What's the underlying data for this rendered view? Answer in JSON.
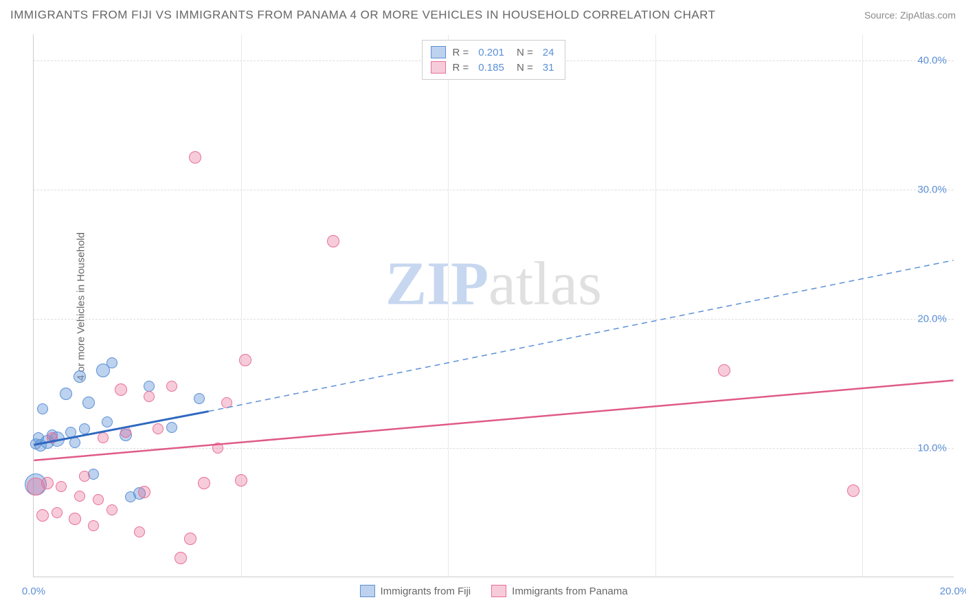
{
  "title": "IMMIGRANTS FROM FIJI VS IMMIGRANTS FROM PANAMA 4 OR MORE VEHICLES IN HOUSEHOLD CORRELATION CHART",
  "source": "Source: ZipAtlas.com",
  "y_axis_label": "4 or more Vehicles in Household",
  "watermark_zip": "ZIP",
  "watermark_atlas": "atlas",
  "chart": {
    "type": "scatter",
    "xlim": [
      0,
      20
    ],
    "ylim": [
      0,
      42
    ],
    "xticks": [
      {
        "val": 0,
        "label": "0.0%"
      },
      {
        "val": 20,
        "label": "20.0%"
      }
    ],
    "yticks": [
      {
        "val": 10,
        "label": "10.0%"
      },
      {
        "val": 20,
        "label": "20.0%"
      },
      {
        "val": 30,
        "label": "30.0%"
      },
      {
        "val": 40,
        "label": "40.0%"
      }
    ],
    "vgrid": [
      4.5,
      9.0,
      13.5,
      18.0
    ],
    "background_color": "#ffffff",
    "grid_color": "#dddddd",
    "series": [
      {
        "name": "Immigrants from Fiji",
        "fill": "rgba(107,156,218,0.45)",
        "stroke": "#5b8fd6",
        "r_value": "0.201",
        "n_value": "24",
        "trend": {
          "x1": 0,
          "y1": 10.2,
          "x2": 3.8,
          "y2": 12.8,
          "x2_dash": 20,
          "y2_dash": 24.5,
          "solid_color": "#2f68c0",
          "solid_width": 3,
          "dash_color": "#5b8fd6",
          "dash_width": 1.5
        },
        "points": [
          {
            "x": 0.05,
            "y": 10.3,
            "r": 8
          },
          {
            "x": 0.1,
            "y": 10.8,
            "r": 8
          },
          {
            "x": 0.15,
            "y": 10.2,
            "r": 9
          },
          {
            "x": 0.2,
            "y": 13.0,
            "r": 8
          },
          {
            "x": 0.3,
            "y": 10.5,
            "r": 10
          },
          {
            "x": 0.4,
            "y": 11.0,
            "r": 8
          },
          {
            "x": 0.5,
            "y": 10.7,
            "r": 11
          },
          {
            "x": 0.7,
            "y": 14.2,
            "r": 9
          },
          {
            "x": 0.8,
            "y": 11.2,
            "r": 8
          },
          {
            "x": 0.9,
            "y": 10.4,
            "r": 8
          },
          {
            "x": 1.0,
            "y": 15.5,
            "r": 9
          },
          {
            "x": 1.1,
            "y": 11.5,
            "r": 8
          },
          {
            "x": 1.2,
            "y": 13.5,
            "r": 9
          },
          {
            "x": 1.3,
            "y": 8.0,
            "r": 8
          },
          {
            "x": 1.5,
            "y": 16.0,
            "r": 10
          },
          {
            "x": 1.6,
            "y": 12.0,
            "r": 8
          },
          {
            "x": 1.7,
            "y": 16.6,
            "r": 8
          },
          {
            "x": 2.0,
            "y": 11.0,
            "r": 9
          },
          {
            "x": 2.1,
            "y": 6.2,
            "r": 8
          },
          {
            "x": 2.3,
            "y": 6.5,
            "r": 9
          },
          {
            "x": 2.5,
            "y": 14.8,
            "r": 8
          },
          {
            "x": 3.0,
            "y": 11.6,
            "r": 8
          },
          {
            "x": 3.6,
            "y": 13.8,
            "r": 8
          },
          {
            "x": 0.05,
            "y": 7.2,
            "r": 16
          }
        ]
      },
      {
        "name": "Immigrants from Panama",
        "fill": "rgba(232,110,150,0.35)",
        "stroke": "#e86e96",
        "r_value": "0.185",
        "n_value": "31",
        "trend": {
          "x1": 0,
          "y1": 9.0,
          "x2": 20,
          "y2": 15.2,
          "solid_color": "#e05a86",
          "solid_width": 2.5
        },
        "points": [
          {
            "x": 0.05,
            "y": 7.0,
            "r": 13
          },
          {
            "x": 0.2,
            "y": 4.8,
            "r": 9
          },
          {
            "x": 0.3,
            "y": 7.3,
            "r": 9
          },
          {
            "x": 0.5,
            "y": 5.0,
            "r": 8
          },
          {
            "x": 0.6,
            "y": 7.0,
            "r": 8
          },
          {
            "x": 0.9,
            "y": 4.5,
            "r": 9
          },
          {
            "x": 1.0,
            "y": 6.3,
            "r": 8
          },
          {
            "x": 1.1,
            "y": 7.8,
            "r": 8
          },
          {
            "x": 1.3,
            "y": 4.0,
            "r": 8
          },
          {
            "x": 1.4,
            "y": 6.0,
            "r": 8
          },
          {
            "x": 1.5,
            "y": 10.8,
            "r": 8
          },
          {
            "x": 1.7,
            "y": 5.2,
            "r": 8
          },
          {
            "x": 1.9,
            "y": 14.5,
            "r": 9
          },
          {
            "x": 2.0,
            "y": 11.2,
            "r": 8
          },
          {
            "x": 2.3,
            "y": 3.5,
            "r": 8
          },
          {
            "x": 2.4,
            "y": 6.6,
            "r": 9
          },
          {
            "x": 2.5,
            "y": 14.0,
            "r": 8
          },
          {
            "x": 2.7,
            "y": 11.5,
            "r": 8
          },
          {
            "x": 3.0,
            "y": 14.8,
            "r": 8
          },
          {
            "x": 3.2,
            "y": 1.5,
            "r": 9
          },
          {
            "x": 3.4,
            "y": 3.0,
            "r": 9
          },
          {
            "x": 3.5,
            "y": 32.5,
            "r": 9
          },
          {
            "x": 3.7,
            "y": 7.3,
            "r": 9
          },
          {
            "x": 4.0,
            "y": 10.0,
            "r": 8
          },
          {
            "x": 4.2,
            "y": 13.5,
            "r": 8
          },
          {
            "x": 4.5,
            "y": 7.5,
            "r": 9
          },
          {
            "x": 4.6,
            "y": 16.8,
            "r": 9
          },
          {
            "x": 6.5,
            "y": 26.0,
            "r": 9
          },
          {
            "x": 15.0,
            "y": 16.0,
            "r": 9
          },
          {
            "x": 17.8,
            "y": 6.7,
            "r": 9
          },
          {
            "x": 0.4,
            "y": 10.8,
            "r": 8
          }
        ]
      }
    ]
  }
}
